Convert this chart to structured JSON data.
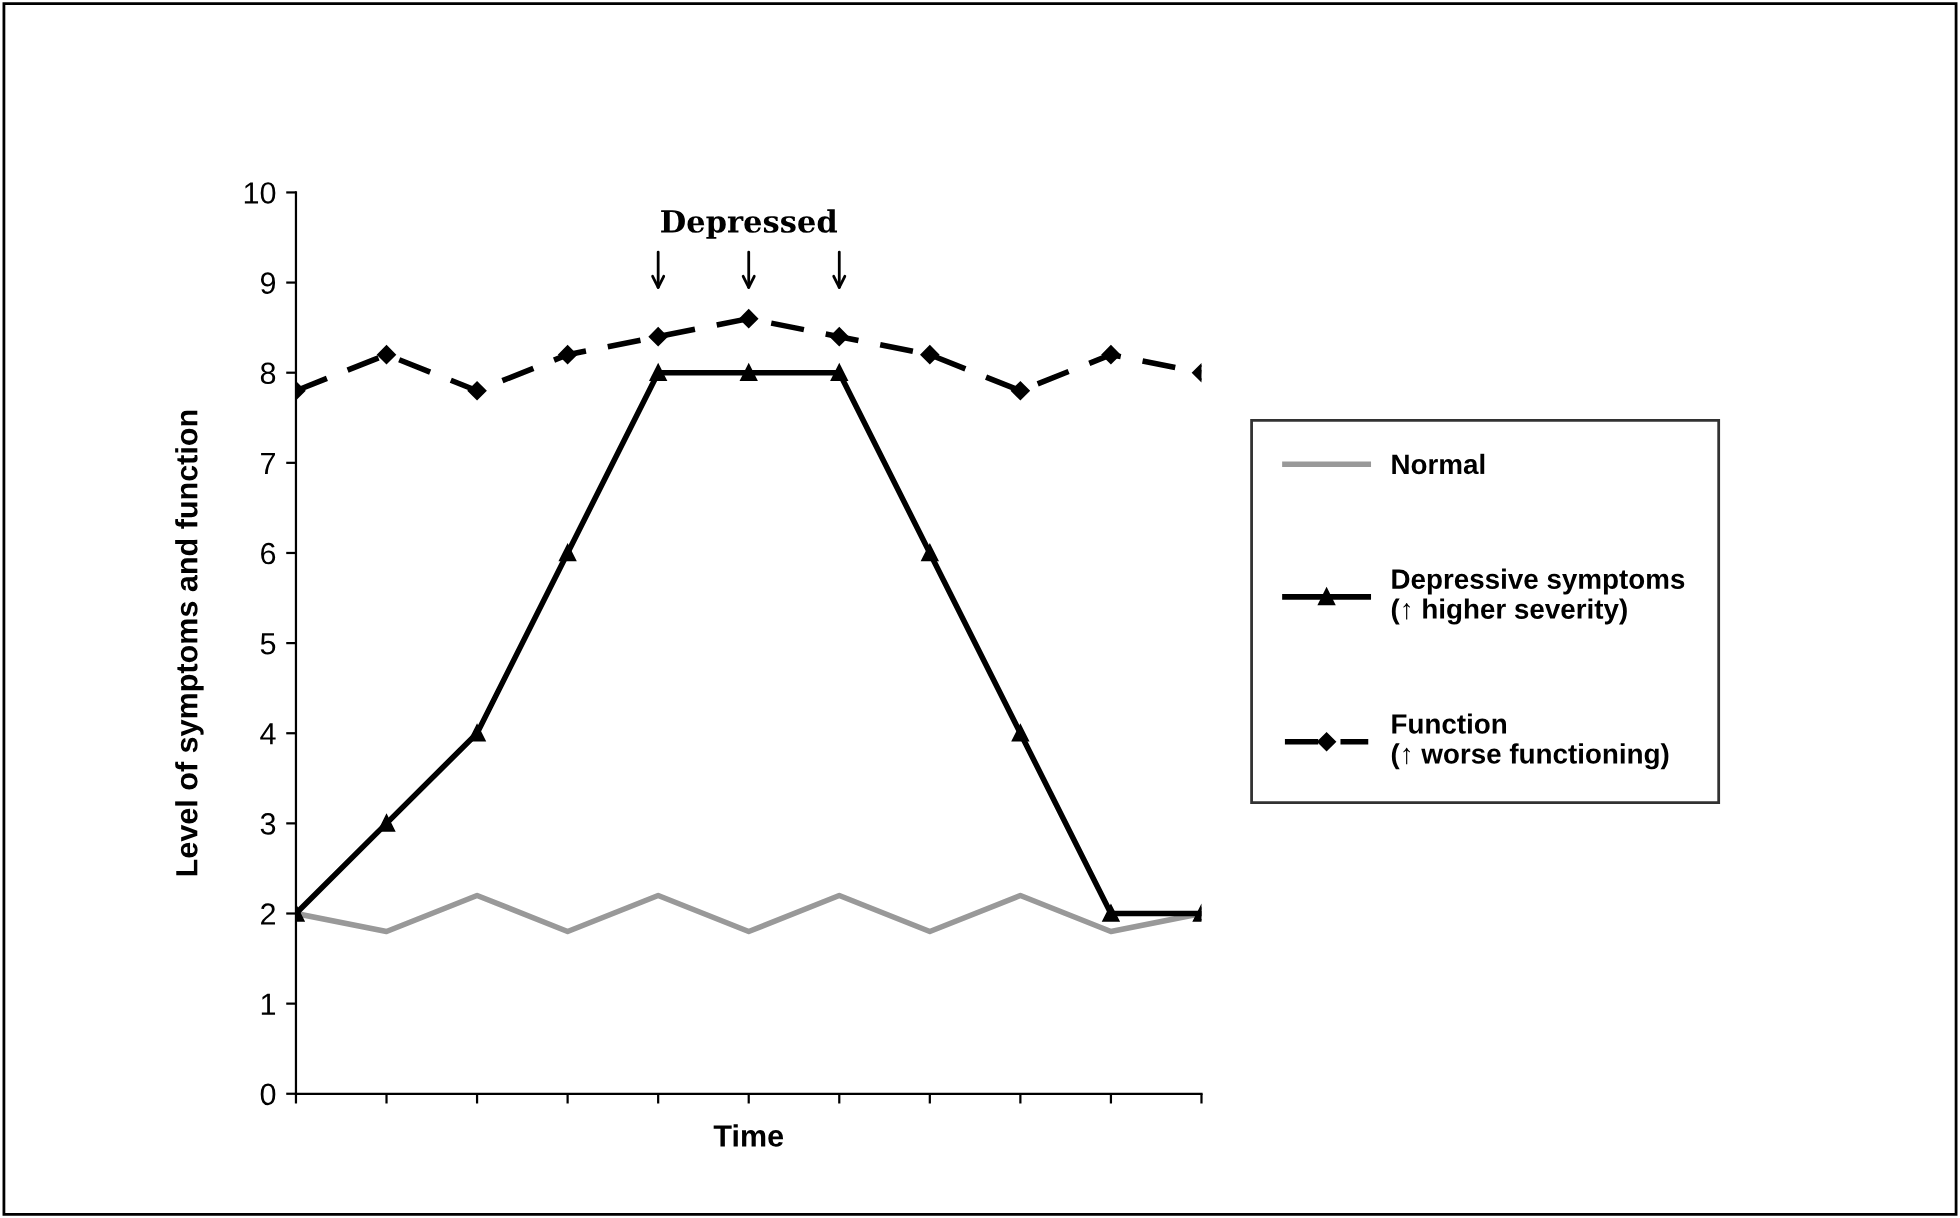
{
  "chart_data": {
    "type": "line",
    "xlabel": "Time",
    "ylabel": "Level of symptoms and function",
    "categories": [
      null,
      null,
      null,
      null,
      null,
      null,
      null,
      null,
      null,
      null,
      null
    ],
    "series": [
      {
        "name": "Normal",
        "color": "#999999",
        "marker": "none",
        "line_style": "solid",
        "values": [
          2.0,
          1.8,
          2.2,
          1.8,
          2.2,
          1.8,
          2.2,
          1.8,
          2.2,
          1.8,
          2.0
        ]
      },
      {
        "name": "Depressive symptoms\n(↑ higher severity)",
        "color": "#000000",
        "marker": "triangle",
        "line_style": "solid",
        "values": [
          2,
          3,
          4,
          6,
          8,
          8,
          8,
          6,
          4,
          2,
          2
        ]
      },
      {
        "name": "Function\n(↑ worse functioning)",
        "color": "#000000",
        "marker": "diamond",
        "line_style": "dashed",
        "values": [
          7.8,
          8.2,
          7.8,
          8.2,
          8.4,
          8.6,
          8.4,
          8.2,
          7.8,
          8.2,
          8.0
        ]
      }
    ],
    "ylim": [
      0,
      10
    ],
    "yticks": [
      0,
      1,
      2,
      3,
      4,
      5,
      6,
      7,
      8,
      9,
      10
    ],
    "grid": false,
    "legend": "right",
    "annotations": [
      "Depressed"
    ]
  }
}
